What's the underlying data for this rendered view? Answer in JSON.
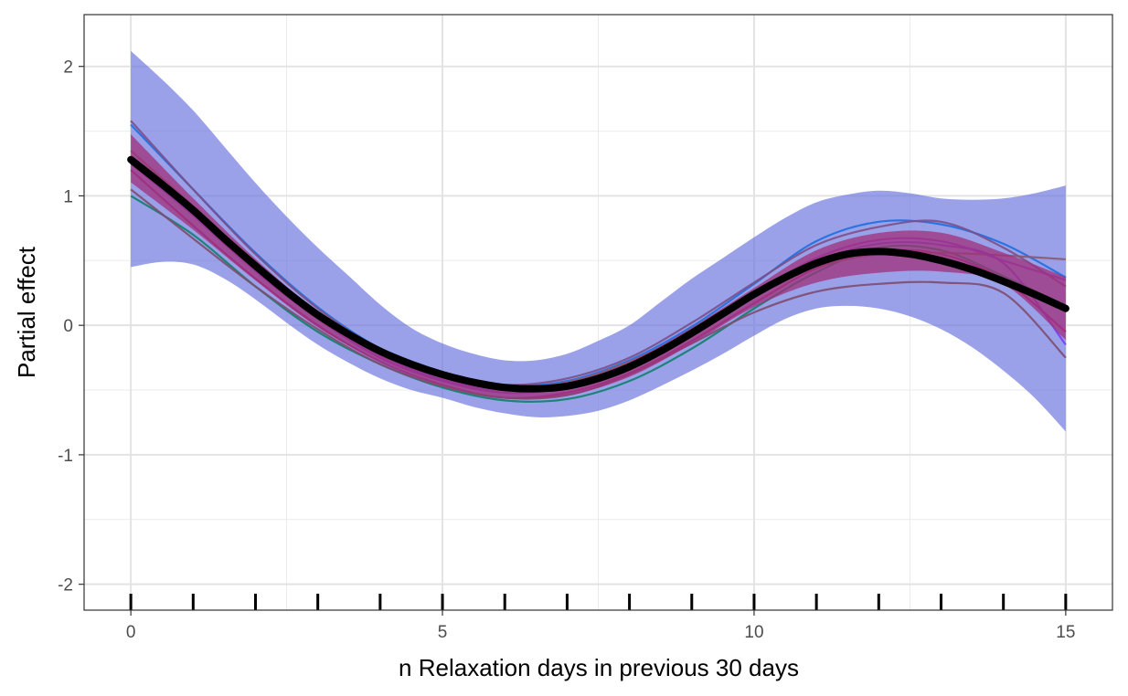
{
  "chart_data": {
    "type": "line",
    "title": "",
    "xlabel": "n Relaxation days in previous 30 days",
    "ylabel": "Partial effect",
    "xlim": [
      -0.75,
      15.75
    ],
    "ylim": [
      -2.2,
      2.4
    ],
    "x_ticks": [
      0,
      5,
      10,
      15
    ],
    "x_tick_labels": [
      "0",
      "5",
      "10",
      "15"
    ],
    "y_ticks": [
      -2,
      -1,
      0,
      1,
      2
    ],
    "y_tick_labels": [
      "-2",
      "-1",
      "0",
      "1",
      "2"
    ],
    "grid": true,
    "legend": "none",
    "rug": [
      0,
      1,
      2,
      3,
      4,
      5,
      6,
      7,
      8,
      9,
      10,
      11,
      12,
      13,
      14,
      15
    ],
    "band": {
      "color": "#6b74de",
      "x": [
        0,
        0.5,
        1,
        1.5,
        2,
        2.5,
        3,
        3.5,
        4,
        4.5,
        5,
        5.5,
        6,
        6.5,
        7,
        7.5,
        8,
        8.5,
        9,
        9.5,
        10,
        10.5,
        11,
        11.5,
        12,
        12.5,
        13,
        13.5,
        14,
        14.5,
        15
      ],
      "upper": [
        2.12,
        1.9,
        1.66,
        1.38,
        1.1,
        0.84,
        0.6,
        0.38,
        0.16,
        -0.02,
        -0.14,
        -0.22,
        -0.27,
        -0.27,
        -0.22,
        -0.12,
        0.0,
        0.18,
        0.36,
        0.52,
        0.68,
        0.83,
        0.95,
        1.01,
        1.04,
        1.02,
        0.98,
        0.97,
        0.98,
        1.02,
        1.08
      ],
      "lower": [
        0.45,
        0.49,
        0.47,
        0.36,
        0.2,
        0.02,
        -0.15,
        -0.29,
        -0.41,
        -0.5,
        -0.56,
        -0.63,
        -0.68,
        -0.71,
        -0.7,
        -0.66,
        -0.58,
        -0.47,
        -0.35,
        -0.22,
        -0.08,
        0.05,
        0.13,
        0.15,
        0.13,
        0.07,
        -0.03,
        -0.17,
        -0.35,
        -0.56,
        -0.82
      ]
    },
    "ensemble": {
      "x": [
        0,
        1,
        2,
        3,
        4,
        5,
        6,
        7,
        8,
        9,
        10,
        11,
        12,
        13,
        14,
        15
      ],
      "series": [
        {
          "color": "#0f7f6a",
          "values": [
            1.0,
            0.7,
            0.3,
            -0.05,
            -0.3,
            -0.48,
            -0.58,
            -0.57,
            -0.43,
            -0.18,
            0.13,
            0.41,
            0.6,
            0.58,
            0.38,
            0.15
          ]
        },
        {
          "color": "#1e6fe0",
          "values": [
            1.55,
            1.05,
            0.56,
            0.14,
            -0.18,
            -0.38,
            -0.47,
            -0.43,
            -0.27,
            -0.01,
            0.32,
            0.65,
            0.8,
            0.78,
            0.63,
            0.37
          ]
        },
        {
          "color": "#7b4f8a",
          "values": [
            1.58,
            1.05,
            0.55,
            0.13,
            -0.19,
            -0.38,
            -0.46,
            -0.41,
            -0.25,
            0.02,
            0.33,
            0.62,
            0.76,
            0.8,
            0.6,
            0.3
          ]
        },
        {
          "color": "#8a3bd6",
          "values": [
            1.3,
            0.85,
            0.42,
            0.05,
            -0.25,
            -0.43,
            -0.52,
            -0.48,
            -0.33,
            -0.07,
            0.24,
            0.52,
            0.66,
            0.65,
            0.5,
            0.35
          ]
        },
        {
          "color": "#a02b8c",
          "values": [
            1.2,
            0.77,
            0.36,
            0.0,
            -0.28,
            -0.46,
            -0.56,
            -0.52,
            -0.37,
            -0.12,
            0.17,
            0.44,
            0.57,
            0.55,
            0.35,
            -0.05
          ]
        },
        {
          "color": "#7e4d6f",
          "values": [
            1.05,
            0.67,
            0.3,
            -0.03,
            -0.3,
            -0.47,
            -0.56,
            -0.54,
            -0.38,
            -0.14,
            0.1,
            0.26,
            0.32,
            0.33,
            0.25,
            -0.25
          ]
        },
        {
          "color": "#8a5a6e",
          "values": [
            1.35,
            0.92,
            0.48,
            0.09,
            -0.21,
            -0.4,
            -0.48,
            -0.44,
            -0.28,
            -0.05,
            0.22,
            0.45,
            0.55,
            0.56,
            0.54,
            0.51
          ]
        },
        {
          "color": "#7a3ff0",
          "values": [
            1.25,
            0.85,
            0.43,
            0.06,
            -0.23,
            -0.42,
            -0.5,
            -0.46,
            -0.31,
            -0.07,
            0.22,
            0.49,
            0.63,
            0.62,
            0.48,
            -0.15
          ]
        }
      ]
    },
    "series": [
      {
        "color": "#000000",
        "x": [
          0,
          0.5,
          1,
          1.5,
          2,
          2.5,
          3,
          3.5,
          4,
          4.5,
          5,
          5.5,
          6,
          6.5,
          7,
          7.5,
          8,
          8.5,
          9,
          9.5,
          10,
          10.5,
          11,
          11.5,
          12,
          12.5,
          13,
          13.5,
          14,
          14.5,
          15
        ],
        "values": [
          1.28,
          1.09,
          0.89,
          0.67,
          0.46,
          0.26,
          0.08,
          -0.07,
          -0.2,
          -0.3,
          -0.38,
          -0.44,
          -0.48,
          -0.49,
          -0.47,
          -0.41,
          -0.32,
          -0.2,
          -0.06,
          0.09,
          0.24,
          0.37,
          0.48,
          0.55,
          0.57,
          0.55,
          0.5,
          0.43,
          0.34,
          0.24,
          0.13
        ]
      }
    ]
  }
}
